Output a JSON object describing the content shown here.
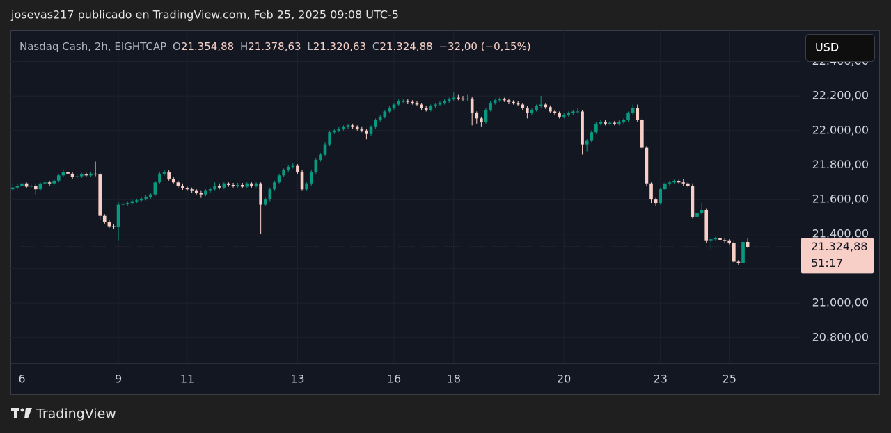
{
  "header": {
    "title": "josevas217 publicado en TradingView.com, Feb 25, 2025 09:08 UTC-5"
  },
  "legend": {
    "symbol": "Nasdaq Cash, 2h, EIGHTCAP",
    "open_label": "O",
    "open": "21.354,88",
    "high_label": "H",
    "high": "21.378,63",
    "low_label": "L",
    "low": "21.320,63",
    "close_label": "C",
    "close": "21.324,88",
    "change": "−32,00 (−0,15%)"
  },
  "currency": "USD",
  "chart_data": {
    "type": "candlestick",
    "up_color": "#089981",
    "down_color": "#f8cfc6",
    "grid": true,
    "xlim": [
      -0.5,
      171.5
    ],
    "xticks": [
      {
        "value": 2,
        "label": "6"
      },
      {
        "value": 23,
        "label": "9"
      },
      {
        "value": 38,
        "label": "11"
      },
      {
        "value": 62,
        "label": "13"
      },
      {
        "value": 83,
        "label": "16"
      },
      {
        "value": 96,
        "label": "18"
      },
      {
        "value": 120,
        "label": "20"
      },
      {
        "value": 141,
        "label": "23"
      },
      {
        "value": 156,
        "label": "25"
      }
    ],
    "ylim": [
      20650,
      22583
    ],
    "yticks": [
      {
        "value": 20800,
        "label": "20.800,00"
      },
      {
        "value": 21000,
        "label": "21.000,00"
      },
      {
        "value": 21200,
        "label": "21.200,00"
      },
      {
        "value": 21400,
        "label": "21.400,00"
      },
      {
        "value": 21600,
        "label": "21.600,00"
      },
      {
        "value": 21800,
        "label": "21.800,00"
      },
      {
        "value": 22000,
        "label": "22.000,00"
      },
      {
        "value": 22200,
        "label": "22.200,00"
      },
      {
        "value": 22400,
        "label": "22.400,00"
      }
    ],
    "last_price": {
      "value": 21324.88,
      "label": "21.324,88"
    },
    "countdown": "51:17",
    "candles": [
      [
        21660,
        21690,
        21650,
        21670
      ],
      [
        21670,
        21690,
        21660,
        21680
      ],
      [
        21680,
        21700,
        21670,
        21690
      ],
      [
        21690,
        21700,
        21665,
        21675
      ],
      [
        21675,
        21690,
        21665,
        21680
      ],
      [
        21680,
        21690,
        21630,
        21660
      ],
      [
        21660,
        21700,
        21650,
        21690
      ],
      [
        21690,
        21715,
        21680,
        21700
      ],
      [
        21700,
        21710,
        21680,
        21690
      ],
      [
        21690,
        21720,
        21680,
        21710
      ],
      [
        21710,
        21750,
        21700,
        21740
      ],
      [
        21740,
        21775,
        21730,
        21760
      ],
      [
        21760,
        21770,
        21740,
        21750
      ],
      [
        21750,
        21760,
        21720,
        21730
      ],
      [
        21730,
        21745,
        21720,
        21735
      ],
      [
        21735,
        21755,
        21725,
        21745
      ],
      [
        21745,
        21755,
        21730,
        21740
      ],
      [
        21740,
        21760,
        21730,
        21750
      ],
      [
        21750,
        21820,
        21735,
        21745
      ],
      [
        21745,
        21755,
        21480,
        21505
      ],
      [
        21505,
        21515,
        21460,
        21470
      ],
      [
        21470,
        21480,
        21435,
        21445
      ],
      [
        21445,
        21455,
        21430,
        21440
      ],
      [
        21440,
        21585,
        21360,
        21570
      ],
      [
        21570,
        21585,
        21560,
        21575
      ],
      [
        21575,
        21590,
        21565,
        21580
      ],
      [
        21580,
        21600,
        21570,
        21590
      ],
      [
        21590,
        21605,
        21580,
        21595
      ],
      [
        21595,
        21615,
        21585,
        21605
      ],
      [
        21605,
        21625,
        21595,
        21615
      ],
      [
        21615,
        21640,
        21605,
        21630
      ],
      [
        21630,
        21710,
        21620,
        21700
      ],
      [
        21700,
        21760,
        21690,
        21750
      ],
      [
        21750,
        21770,
        21740,
        21760
      ],
      [
        21760,
        21770,
        21710,
        21720
      ],
      [
        21720,
        21730,
        21690,
        21700
      ],
      [
        21700,
        21710,
        21670,
        21680
      ],
      [
        21680,
        21690,
        21655,
        21665
      ],
      [
        21665,
        21675,
        21650,
        21660
      ],
      [
        21660,
        21670,
        21640,
        21650
      ],
      [
        21650,
        21660,
        21630,
        21640
      ],
      [
        21640,
        21650,
        21610,
        21630
      ],
      [
        21630,
        21660,
        21620,
        21650
      ],
      [
        21650,
        21670,
        21640,
        21660
      ],
      [
        21660,
        21700,
        21650,
        21680
      ],
      [
        21680,
        21690,
        21660,
        21670
      ],
      [
        21670,
        21700,
        21660,
        21690
      ],
      [
        21690,
        21700,
        21675,
        21685
      ],
      [
        21685,
        21695,
        21670,
        21680
      ],
      [
        21680,
        21695,
        21670,
        21685
      ],
      [
        21685,
        21695,
        21665,
        21675
      ],
      [
        21675,
        21700,
        21665,
        21690
      ],
      [
        21690,
        21700,
        21670,
        21680
      ],
      [
        21680,
        21700,
        21670,
        21690
      ],
      [
        21690,
        21700,
        21400,
        21570
      ],
      [
        21570,
        21610,
        21560,
        21600
      ],
      [
        21600,
        21670,
        21590,
        21660
      ],
      [
        21660,
        21710,
        21650,
        21700
      ],
      [
        21700,
        21750,
        21690,
        21740
      ],
      [
        21740,
        21780,
        21730,
        21770
      ],
      [
        21770,
        21800,
        21760,
        21790
      ],
      [
        21790,
        21810,
        21780,
        21795
      ],
      [
        21795,
        21805,
        21750,
        21760
      ],
      [
        21760,
        21770,
        21650,
        21660
      ],
      [
        21660,
        21700,
        21650,
        21690
      ],
      [
        21690,
        21770,
        21680,
        21760
      ],
      [
        21760,
        21840,
        21750,
        21830
      ],
      [
        21830,
        21870,
        21820,
        21860
      ],
      [
        21860,
        21930,
        21850,
        21920
      ],
      [
        21920,
        22000,
        21910,
        21990
      ],
      [
        21990,
        22010,
        21980,
        22000
      ],
      [
        22000,
        22020,
        21990,
        22010
      ],
      [
        22010,
        22030,
        22000,
        22020
      ],
      [
        22020,
        22040,
        22010,
        22030
      ],
      [
        22030,
        22040,
        22010,
        22020
      ],
      [
        22020,
        22030,
        22000,
        22010
      ],
      [
        22010,
        22020,
        21990,
        22000
      ],
      [
        22000,
        22010,
        21950,
        21980
      ],
      [
        21980,
        22030,
        21970,
        22020
      ],
      [
        22020,
        22070,
        22010,
        22060
      ],
      [
        22060,
        22090,
        22050,
        22080
      ],
      [
        22080,
        22120,
        22070,
        22110
      ],
      [
        22110,
        22140,
        22100,
        22130
      ],
      [
        22130,
        22160,
        22120,
        22150
      ],
      [
        22150,
        22180,
        22140,
        22170
      ],
      [
        22170,
        22180,
        22160,
        22170
      ],
      [
        22170,
        22180,
        22155,
        22165
      ],
      [
        22165,
        22175,
        22150,
        22160
      ],
      [
        22160,
        22170,
        22140,
        22150
      ],
      [
        22150,
        22160,
        22120,
        22130
      ],
      [
        22130,
        22140,
        22110,
        22120
      ],
      [
        22120,
        22150,
        22110,
        22140
      ],
      [
        22140,
        22160,
        22130,
        22150
      ],
      [
        22150,
        22170,
        22140,
        22160
      ],
      [
        22160,
        22180,
        22150,
        22170
      ],
      [
        22170,
        22190,
        22160,
        22180
      ],
      [
        22180,
        22220,
        22170,
        22190
      ],
      [
        22190,
        22210,
        22175,
        22185
      ],
      [
        22185,
        22200,
        22170,
        22180
      ],
      [
        22180,
        22210,
        22170,
        22185
      ],
      [
        22185,
        22195,
        22030,
        22100
      ],
      [
        22100,
        22110,
        22040,
        22070
      ],
      [
        22070,
        22080,
        22020,
        22050
      ],
      [
        22050,
        22130,
        22040,
        22120
      ],
      [
        22120,
        22170,
        22110,
        22160
      ],
      [
        22160,
        22185,
        22150,
        22175
      ],
      [
        22175,
        22190,
        22165,
        22180
      ],
      [
        22180,
        22190,
        22165,
        22175
      ],
      [
        22175,
        22185,
        22155,
        22165
      ],
      [
        22165,
        22175,
        22150,
        22160
      ],
      [
        22160,
        22170,
        22140,
        22150
      ],
      [
        22150,
        22160,
        22120,
        22130
      ],
      [
        22130,
        22140,
        22070,
        22100
      ],
      [
        22100,
        22130,
        22090,
        22120
      ],
      [
        22120,
        22150,
        22110,
        22140
      ],
      [
        22140,
        22200,
        22130,
        22150
      ],
      [
        22150,
        22160,
        22125,
        22135
      ],
      [
        22135,
        22145,
        22100,
        22110
      ],
      [
        22110,
        22120,
        22090,
        22100
      ],
      [
        22100,
        22110,
        22070,
        22080
      ],
      [
        22080,
        22100,
        22070,
        22090
      ],
      [
        22090,
        22110,
        22080,
        22100
      ],
      [
        22100,
        22120,
        22090,
        22110
      ],
      [
        22110,
        22130,
        22100,
        22110
      ],
      [
        22110,
        22120,
        21860,
        21920
      ],
      [
        21920,
        21950,
        21880,
        21940
      ],
      [
        21940,
        22000,
        21930,
        21990
      ],
      [
        21990,
        22050,
        21980,
        22040
      ],
      [
        22040,
        22060,
        22030,
        22050
      ],
      [
        22050,
        22060,
        22030,
        22040
      ],
      [
        22040,
        22055,
        22030,
        22045
      ],
      [
        22045,
        22055,
        22030,
        22040
      ],
      [
        22040,
        22060,
        22030,
        22050
      ],
      [
        22050,
        22070,
        22040,
        22060
      ],
      [
        22060,
        22110,
        22050,
        22100
      ],
      [
        22100,
        22150,
        22090,
        22130
      ],
      [
        22130,
        22150,
        22050,
        22060
      ],
      [
        22060,
        22070,
        21890,
        21900
      ],
      [
        21900,
        21910,
        21680,
        21690
      ],
      [
        21690,
        21700,
        21580,
        21600
      ],
      [
        21600,
        21610,
        21560,
        21580
      ],
      [
        21580,
        21670,
        21570,
        21660
      ],
      [
        21660,
        21700,
        21650,
        21690
      ],
      [
        21690,
        21710,
        21680,
        21700
      ],
      [
        21700,
        21715,
        21690,
        21705
      ],
      [
        21705,
        21715,
        21690,
        21700
      ],
      [
        21700,
        21720,
        21680,
        21690
      ],
      [
        21690,
        21700,
        21670,
        21680
      ],
      [
        21680,
        21690,
        21490,
        21500
      ],
      [
        21500,
        21530,
        21490,
        21520
      ],
      [
        21520,
        21580,
        21510,
        21540
      ],
      [
        21540,
        21550,
        21350,
        21360
      ],
      [
        21360,
        21380,
        21310,
        21370
      ],
      [
        21370,
        21385,
        21360,
        21375
      ],
      [
        21375,
        21385,
        21355,
        21365
      ],
      [
        21365,
        21375,
        21350,
        21360
      ],
      [
        21360,
        21370,
        21340,
        21350
      ],
      [
        21350,
        21360,
        21230,
        21240
      ],
      [
        21240,
        21250,
        21220,
        21230
      ],
      [
        21230,
        21370,
        21225,
        21354.88
      ],
      [
        21354.88,
        21378.63,
        21320.63,
        21324.88
      ]
    ]
  },
  "footer": {
    "brand": "TradingView"
  }
}
